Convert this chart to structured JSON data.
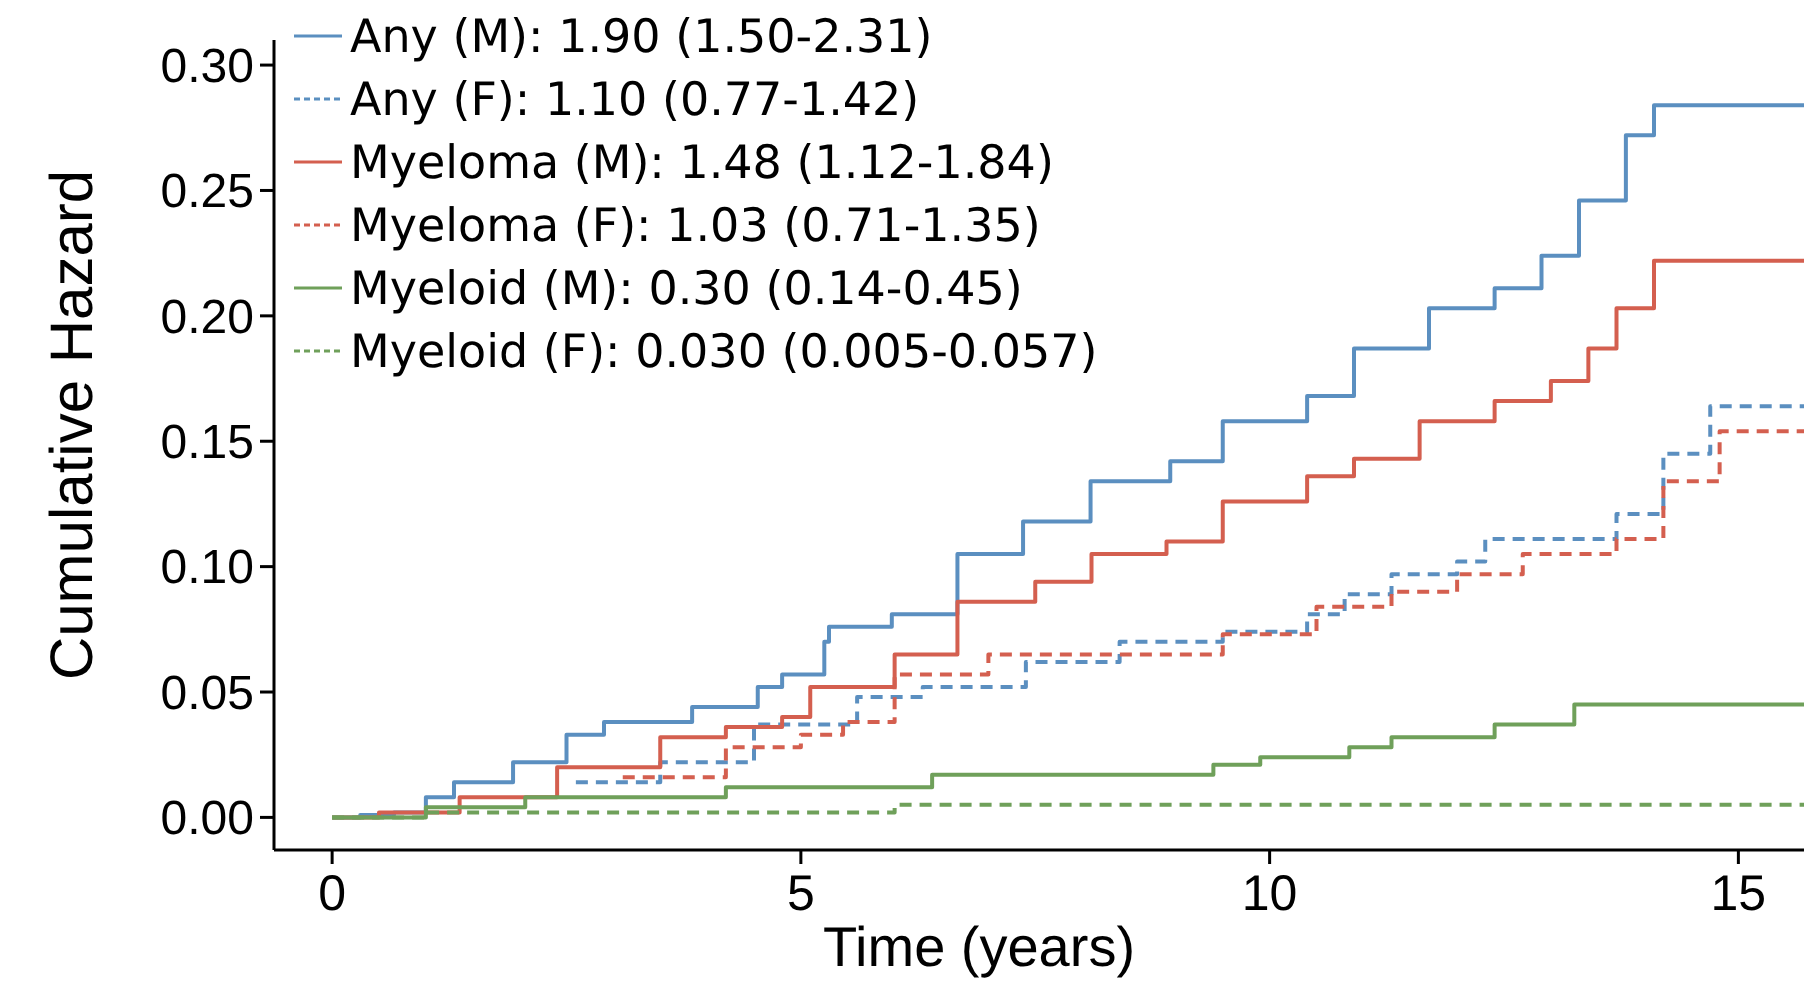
{
  "chart_data": {
    "type": "step",
    "xlabel": "Time (years)",
    "ylabel": "Cumulative Hazard",
    "xlim": [
      -0.62,
      15.7
    ],
    "ylim": [
      -0.013,
      0.31
    ],
    "xticks": [
      0,
      5,
      10,
      15
    ],
    "yticks": [
      {
        "value": 0,
        "label": "0.00"
      },
      {
        "value": 0.05,
        "label": "0.05"
      },
      {
        "value": 0.1,
        "label": "0.10"
      },
      {
        "value": 0.15,
        "label": "0.15"
      },
      {
        "value": 0.2,
        "label": "0.20"
      },
      {
        "value": 0.25,
        "label": "0.25"
      },
      {
        "value": 0.3,
        "label": "0.30"
      }
    ],
    "grid": false,
    "legend": "top left",
    "marker": "none",
    "series": [
      {
        "name": "Any (M): 1.90 (1.50-2.31)",
        "color": "#5b8fc0",
        "line_style": "solid",
        "x": [
          0,
          0.3,
          0.66,
          1.0,
          1.3,
          1.93,
          2.5,
          2.9,
          3.84,
          4.54,
          4.8,
          5.25,
          5.3,
          5.97,
          6.67,
          7.37,
          8.09,
          8.94,
          9.5,
          10.4,
          10.9,
          11.7,
          12.4,
          12.9,
          13.3,
          13.8,
          14.1,
          15.7
        ],
        "values": [
          0,
          0.001,
          0.002,
          0.008,
          0.014,
          0.022,
          0.033,
          0.038,
          0.044,
          0.052,
          0.057,
          0.07,
          0.076,
          0.081,
          0.105,
          0.118,
          0.134,
          0.142,
          0.158,
          0.168,
          0.187,
          0.203,
          0.211,
          0.224,
          0.246,
          0.272,
          0.284,
          0.284
        ]
      },
      {
        "name": "Any (F): 1.10 (0.77-1.42)",
        "color": "#5b8fc0",
        "line_style": "dashed",
        "x": [
          2.6,
          3.5,
          4.5,
          5.6,
          6.3,
          7.4,
          8.4,
          9.5,
          10.4,
          10.8,
          11.3,
          12.0,
          12.3,
          13.7,
          14.2,
          14.7,
          15.7
        ],
        "values": [
          0.014,
          0.022,
          0.037,
          0.048,
          0.052,
          0.062,
          0.07,
          0.074,
          0.081,
          0.089,
          0.097,
          0.102,
          0.111,
          0.121,
          0.145,
          0.164,
          0.164
        ]
      },
      {
        "name": "Myeloma (M): 1.48 (1.12-1.84)",
        "color": "#d45f4f",
        "line_style": "solid",
        "x": [
          0,
          0.5,
          1.36,
          2.4,
          3.5,
          4.2,
          4.8,
          5.1,
          6.0,
          6.67,
          7.5,
          8.1,
          8.9,
          9.5,
          10.4,
          10.9,
          11.6,
          12.4,
          13.0,
          13.4,
          13.7,
          14.1,
          15.7
        ],
        "values": [
          0,
          0.002,
          0.008,
          0.02,
          0.032,
          0.036,
          0.04,
          0.052,
          0.065,
          0.086,
          0.094,
          0.105,
          0.11,
          0.126,
          0.136,
          0.143,
          0.158,
          0.166,
          0.174,
          0.187,
          0.203,
          0.222,
          0.222
        ]
      },
      {
        "name": "Myeloma (F): 1.03 (0.71-1.35)",
        "color": "#d45f4f",
        "line_style": "dashed",
        "x": [
          3.1,
          4.2,
          5.0,
          5.45,
          6.0,
          7.0,
          9.5,
          10.5,
          11.3,
          12.0,
          12.7,
          13.7,
          14.2,
          14.8,
          15.7
        ],
        "values": [
          0.016,
          0.028,
          0.033,
          0.038,
          0.057,
          0.065,
          0.073,
          0.084,
          0.09,
          0.097,
          0.105,
          0.111,
          0.134,
          0.154,
          0.154
        ]
      },
      {
        "name": "Myeloid (M): 0.30 (0.14-0.45)",
        "color": "#6fa05a",
        "line_style": "solid",
        "x": [
          0,
          1.0,
          2.06,
          4.2,
          6.4,
          9.4,
          9.9,
          10.85,
          11.3,
          12.4,
          13.25,
          15.7
        ],
        "values": [
          0,
          0.004,
          0.008,
          0.012,
          0.017,
          0.021,
          0.024,
          0.028,
          0.032,
          0.037,
          0.045,
          0.045
        ]
      },
      {
        "name": "Myeloid (F): 0.030 (0.005-0.057)",
        "color": "#6fa05a",
        "line_style": "dashed",
        "x": [
          0,
          1.0,
          6.0,
          15.7
        ],
        "values": [
          0,
          0.002,
          0.005,
          0.005
        ]
      }
    ]
  }
}
